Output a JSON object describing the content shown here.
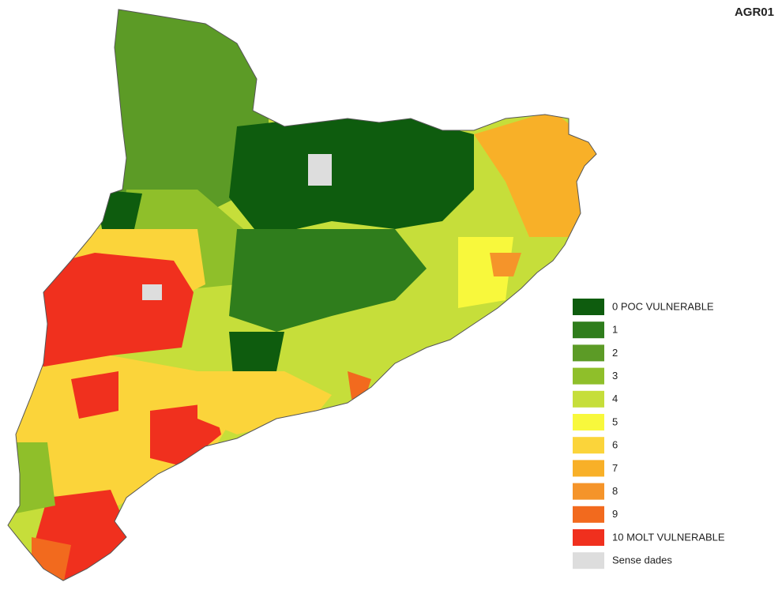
{
  "title": "AGR01",
  "legend": [
    {
      "label": "0  POC VULNERABLE",
      "color": "#0e5c0e"
    },
    {
      "label": "1",
      "color": "#2f7d1c"
    },
    {
      "label": "2",
      "color": "#5c9b26"
    },
    {
      "label": "3",
      "color": "#8fbf2a"
    },
    {
      "label": "4",
      "color": "#c6de3a"
    },
    {
      "label": "5",
      "color": "#f8f83c"
    },
    {
      "label": "6",
      "color": "#fbd43a"
    },
    {
      "label": "7",
      "color": "#f8b028"
    },
    {
      "label": "8",
      "color": "#f5942a"
    },
    {
      "label": "9",
      "color": "#f26a1e"
    },
    {
      "label": "10  MOLT VULNERABLE",
      "color": "#f0301e"
    },
    {
      "label": "Sense dades",
      "color": "#dddddd"
    }
  ]
}
